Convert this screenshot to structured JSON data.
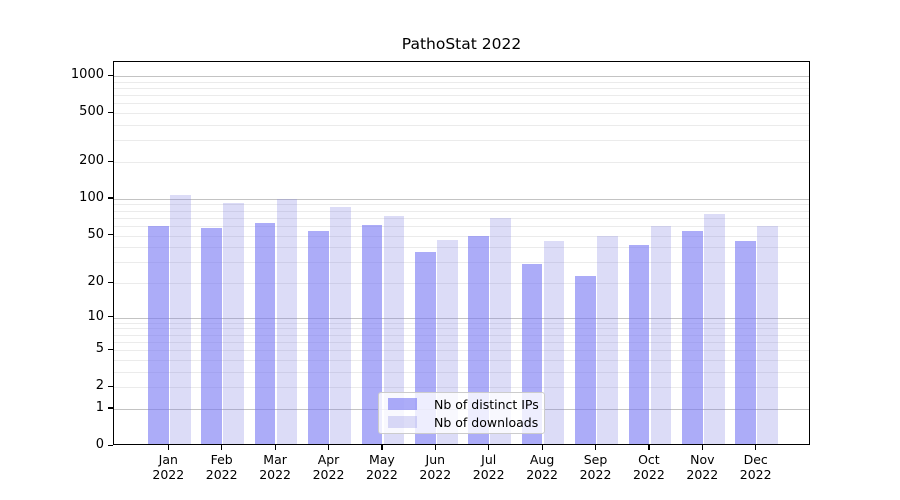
{
  "title": "PathoStat 2022",
  "chart_data": {
    "type": "bar",
    "title": "PathoStat 2022",
    "y_scale": "log1p (symlog-like, log above 1, 0 at baseline)",
    "categories": [
      "Jan",
      "Feb",
      "Mar",
      "Apr",
      "May",
      "Jun",
      "Jul",
      "Aug",
      "Sep",
      "Oct",
      "Nov",
      "Dec"
    ],
    "category_year": "2022",
    "series": [
      {
        "name": "Nb of distinct IPs",
        "color": "rgba(116,116,243,0.6)",
        "values": [
          58,
          56,
          61,
          52,
          59,
          35,
          48,
          28,
          22,
          40,
          52,
          43
        ]
      },
      {
        "name": "Nb of downloads",
        "color": "rgba(130,130,225,0.28)",
        "values": [
          103,
          89,
          97,
          83,
          70,
          44,
          67,
          43,
          48,
          58,
          73,
          58
        ]
      }
    ],
    "y_ticks": [
      "1000",
      "500",
      "200",
      "100",
      "50",
      "20",
      "10",
      "5",
      "2",
      "1",
      "0"
    ],
    "ylim": [
      0,
      1290
    ],
    "xlabel": "",
    "ylabel": "",
    "grid": "horizontal major (decades) and minor (2-9 per decade)",
    "legend_position": "lower center"
  },
  "colors": {
    "axis": "#000000",
    "grid_major": "#c3c3c3",
    "grid_minor": "#ebebeb",
    "background": "#ffffff",
    "legend_border": "#cccccc"
  }
}
